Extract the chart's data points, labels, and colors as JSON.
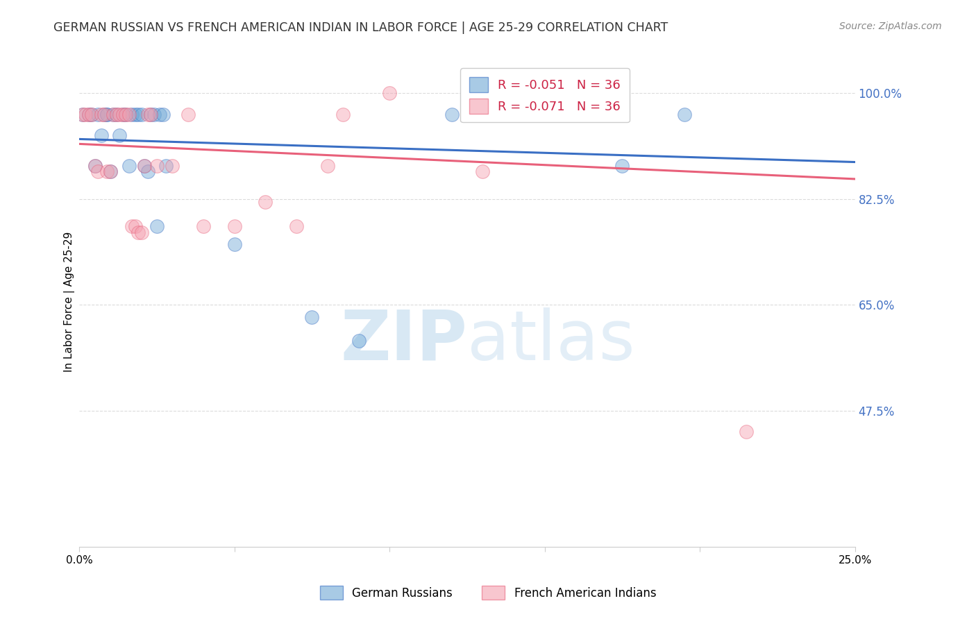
{
  "title": "GERMAN RUSSIAN VS FRENCH AMERICAN INDIAN IN LABOR FORCE | AGE 25-29 CORRELATION CHART",
  "source": "Source: ZipAtlas.com",
  "ylabel_label": "In Labor Force | Age 25-29",
  "ytick_labels": [
    "100.0%",
    "82.5%",
    "65.0%",
    "47.5%"
  ],
  "ytick_values": [
    1.0,
    0.825,
    0.65,
    0.475
  ],
  "xtick_labels": [
    "0.0%",
    "25.0%"
  ],
  "xtick_positions": [
    0.0,
    0.25
  ],
  "xlim": [
    0.0,
    0.25
  ],
  "ylim": [
    0.25,
    1.06
  ],
  "legend_blue": "R = -0.051   N = 36",
  "legend_pink": "R = -0.071   N = 36",
  "legend_label_blue": "German Russians",
  "legend_label_pink": "French American Indians",
  "watermark_zip": "ZIP",
  "watermark_atlas": "atlas",
  "blue_color": "#6fa8d5",
  "pink_color": "#f4a0b0",
  "blue_fill": "#6fa8d5",
  "pink_fill": "#f4a0b0",
  "blue_line_color": "#3a6fc4",
  "pink_line_color": "#e8607a",
  "blue_scatter_x": [
    0.001,
    0.003,
    0.004,
    0.005,
    0.006,
    0.007,
    0.008,
    0.009,
    0.009,
    0.01,
    0.011,
    0.012,
    0.013,
    0.014,
    0.015,
    0.016,
    0.017,
    0.018,
    0.019,
    0.02,
    0.021,
    0.022,
    0.023,
    0.024,
    0.025,
    0.026,
    0.027,
    0.028,
    0.05,
    0.075,
    0.09,
    0.12,
    0.135,
    0.16,
    0.175,
    0.195
  ],
  "blue_scatter_y": [
    0.965,
    0.965,
    0.965,
    0.88,
    0.965,
    0.93,
    0.965,
    0.965,
    0.965,
    0.87,
    0.965,
    0.965,
    0.93,
    0.965,
    0.965,
    0.88,
    0.965,
    0.965,
    0.965,
    0.965,
    0.88,
    0.87,
    0.965,
    0.965,
    0.78,
    0.965,
    0.965,
    0.88,
    0.75,
    0.63,
    0.59,
    0.965,
    0.965,
    0.965,
    0.88,
    0.965
  ],
  "pink_scatter_x": [
    0.001,
    0.002,
    0.003,
    0.004,
    0.005,
    0.006,
    0.007,
    0.008,
    0.009,
    0.01,
    0.011,
    0.012,
    0.013,
    0.014,
    0.015,
    0.016,
    0.017,
    0.018,
    0.019,
    0.02,
    0.021,
    0.022,
    0.023,
    0.025,
    0.03,
    0.035,
    0.04,
    0.05,
    0.06,
    0.07,
    0.08,
    0.085,
    0.1,
    0.13,
    0.16,
    0.215
  ],
  "pink_scatter_y": [
    0.965,
    0.965,
    0.965,
    0.965,
    0.88,
    0.87,
    0.965,
    0.965,
    0.87,
    0.87,
    0.965,
    0.965,
    0.965,
    0.965,
    0.965,
    0.965,
    0.78,
    0.78,
    0.77,
    0.77,
    0.88,
    0.965,
    0.965,
    0.88,
    0.88,
    0.965,
    0.78,
    0.78,
    0.82,
    0.78,
    0.88,
    0.965,
    1.0,
    0.87,
    0.965,
    0.44
  ],
  "blue_trendline_x": [
    0.0,
    0.25
  ],
  "blue_trendline_y": [
    0.924,
    0.886
  ],
  "pink_trendline_x": [
    0.0,
    0.25
  ],
  "pink_trendline_y": [
    0.916,
    0.858
  ],
  "grid_color": "#cccccc",
  "grid_style": "--",
  "background_color": "#ffffff",
  "spine_color": "#cccccc"
}
